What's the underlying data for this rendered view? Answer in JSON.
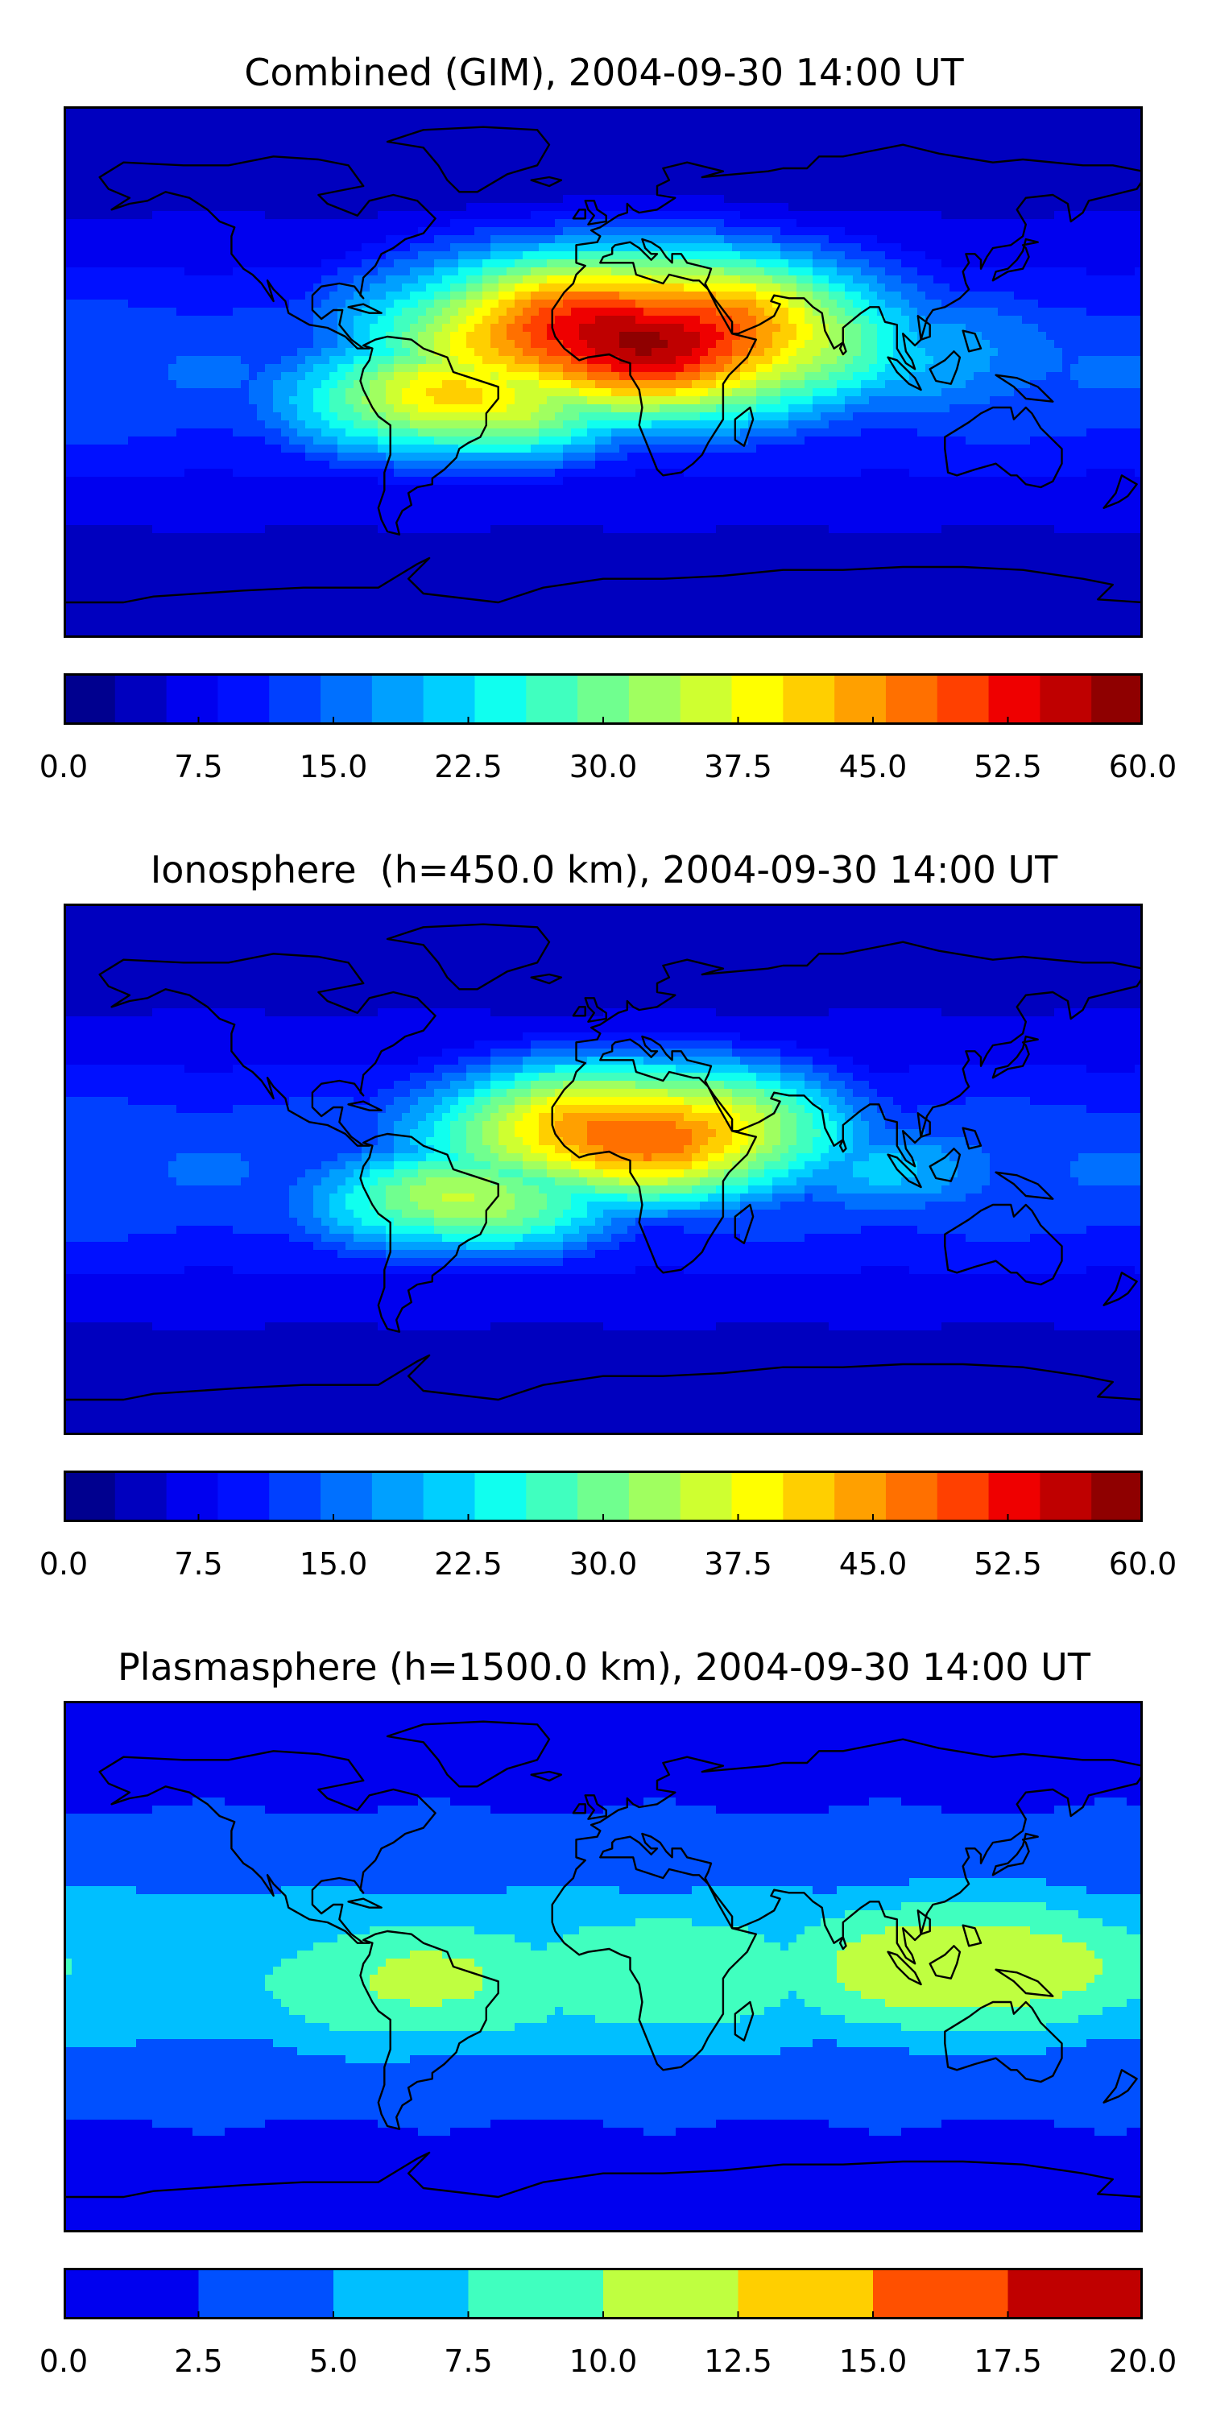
{
  "panels": [
    {
      "title": "Combined (GIM), 2004-09-30 14:00 UT",
      "scale_max": 60.0,
      "colorbar": {
        "vmin": 0,
        "vmax": 60,
        "colors": [
          "#00008f",
          "#0000bf",
          "#0000ef",
          "#0010ff",
          "#0040ff",
          "#0070ff",
          "#00a0ff",
          "#00cfff",
          "#10ffef",
          "#40ffbf",
          "#70ff8f",
          "#a0ff60",
          "#cfff30",
          "#ffff00",
          "#ffcf00",
          "#ffa000",
          "#ff7000",
          "#ff4000",
          "#ef0000",
          "#bf0000",
          "#8f0000"
        ],
        "ticks": [
          "0.0",
          "7.5",
          "15.0",
          "22.5",
          "30.0",
          "37.5",
          "45.0",
          "52.5",
          "60.0"
        ]
      },
      "bands": [
        {
          "lat_center": 12,
          "lon_center": 10,
          "width": 70,
          "peak": 57
        },
        {
          "lat_center": -8,
          "lon_center": -45,
          "width": 55,
          "peak": 40
        },
        {
          "lat_center": 5,
          "lon_center": 100,
          "width": 70,
          "peak": 20
        }
      ]
    },
    {
      "title": "Ionosphere  (h=450.0 km), 2004-09-30 14:00 UT",
      "scale_max": 60.0,
      "colorbar": {
        "vmin": 0,
        "vmax": 60,
        "colors": [
          "#00008f",
          "#0000bf",
          "#0000ef",
          "#0010ff",
          "#0040ff",
          "#0070ff",
          "#00a0ff",
          "#00cfff",
          "#10ffef",
          "#40ffbf",
          "#70ff8f",
          "#a0ff60",
          "#cfff30",
          "#ffff00",
          "#ffcf00",
          "#ffa000",
          "#ff7000",
          "#ff4000",
          "#ef0000",
          "#bf0000",
          "#8f0000"
        ],
        "ticks": [
          "0.0",
          "7.5",
          "15.0",
          "22.5",
          "30.0",
          "37.5",
          "45.0",
          "52.5",
          "60.0"
        ]
      },
      "bands": [
        {
          "lat_center": 12,
          "lon_center": 10,
          "width": 60,
          "peak": 48
        },
        {
          "lat_center": -10,
          "lon_center": -45,
          "width": 50,
          "peak": 34
        },
        {
          "lat_center": 0,
          "lon_center": 95,
          "width": 50,
          "peak": 20
        }
      ]
    },
    {
      "title": "Plasmasphere (h=1500.0 km), 2004-09-30 14:00 UT",
      "scale_max": 20.0,
      "colorbar": {
        "vmin": 0,
        "vmax": 20,
        "colors": [
          "#0000ef",
          "#0050ff",
          "#00bfff",
          "#40ffbf",
          "#bfff40",
          "#ffcf00",
          "#ff5000",
          "#c00000"
        ],
        "ticks": [
          "0.0",
          "2.5",
          "5.0",
          "7.5",
          "10.0",
          "12.5",
          "15.0",
          "17.5",
          "20.0"
        ]
      },
      "bands": [
        {
          "lat_center": 0,
          "lon_center": 120,
          "width": 70,
          "peak": 12.4
        },
        {
          "lat_center": -5,
          "lon_center": -60,
          "width": 70,
          "peak": 10.5
        },
        {
          "lat_center": -2,
          "lon_center": 20,
          "width": 80,
          "peak": 9.5
        }
      ]
    }
  ]
}
